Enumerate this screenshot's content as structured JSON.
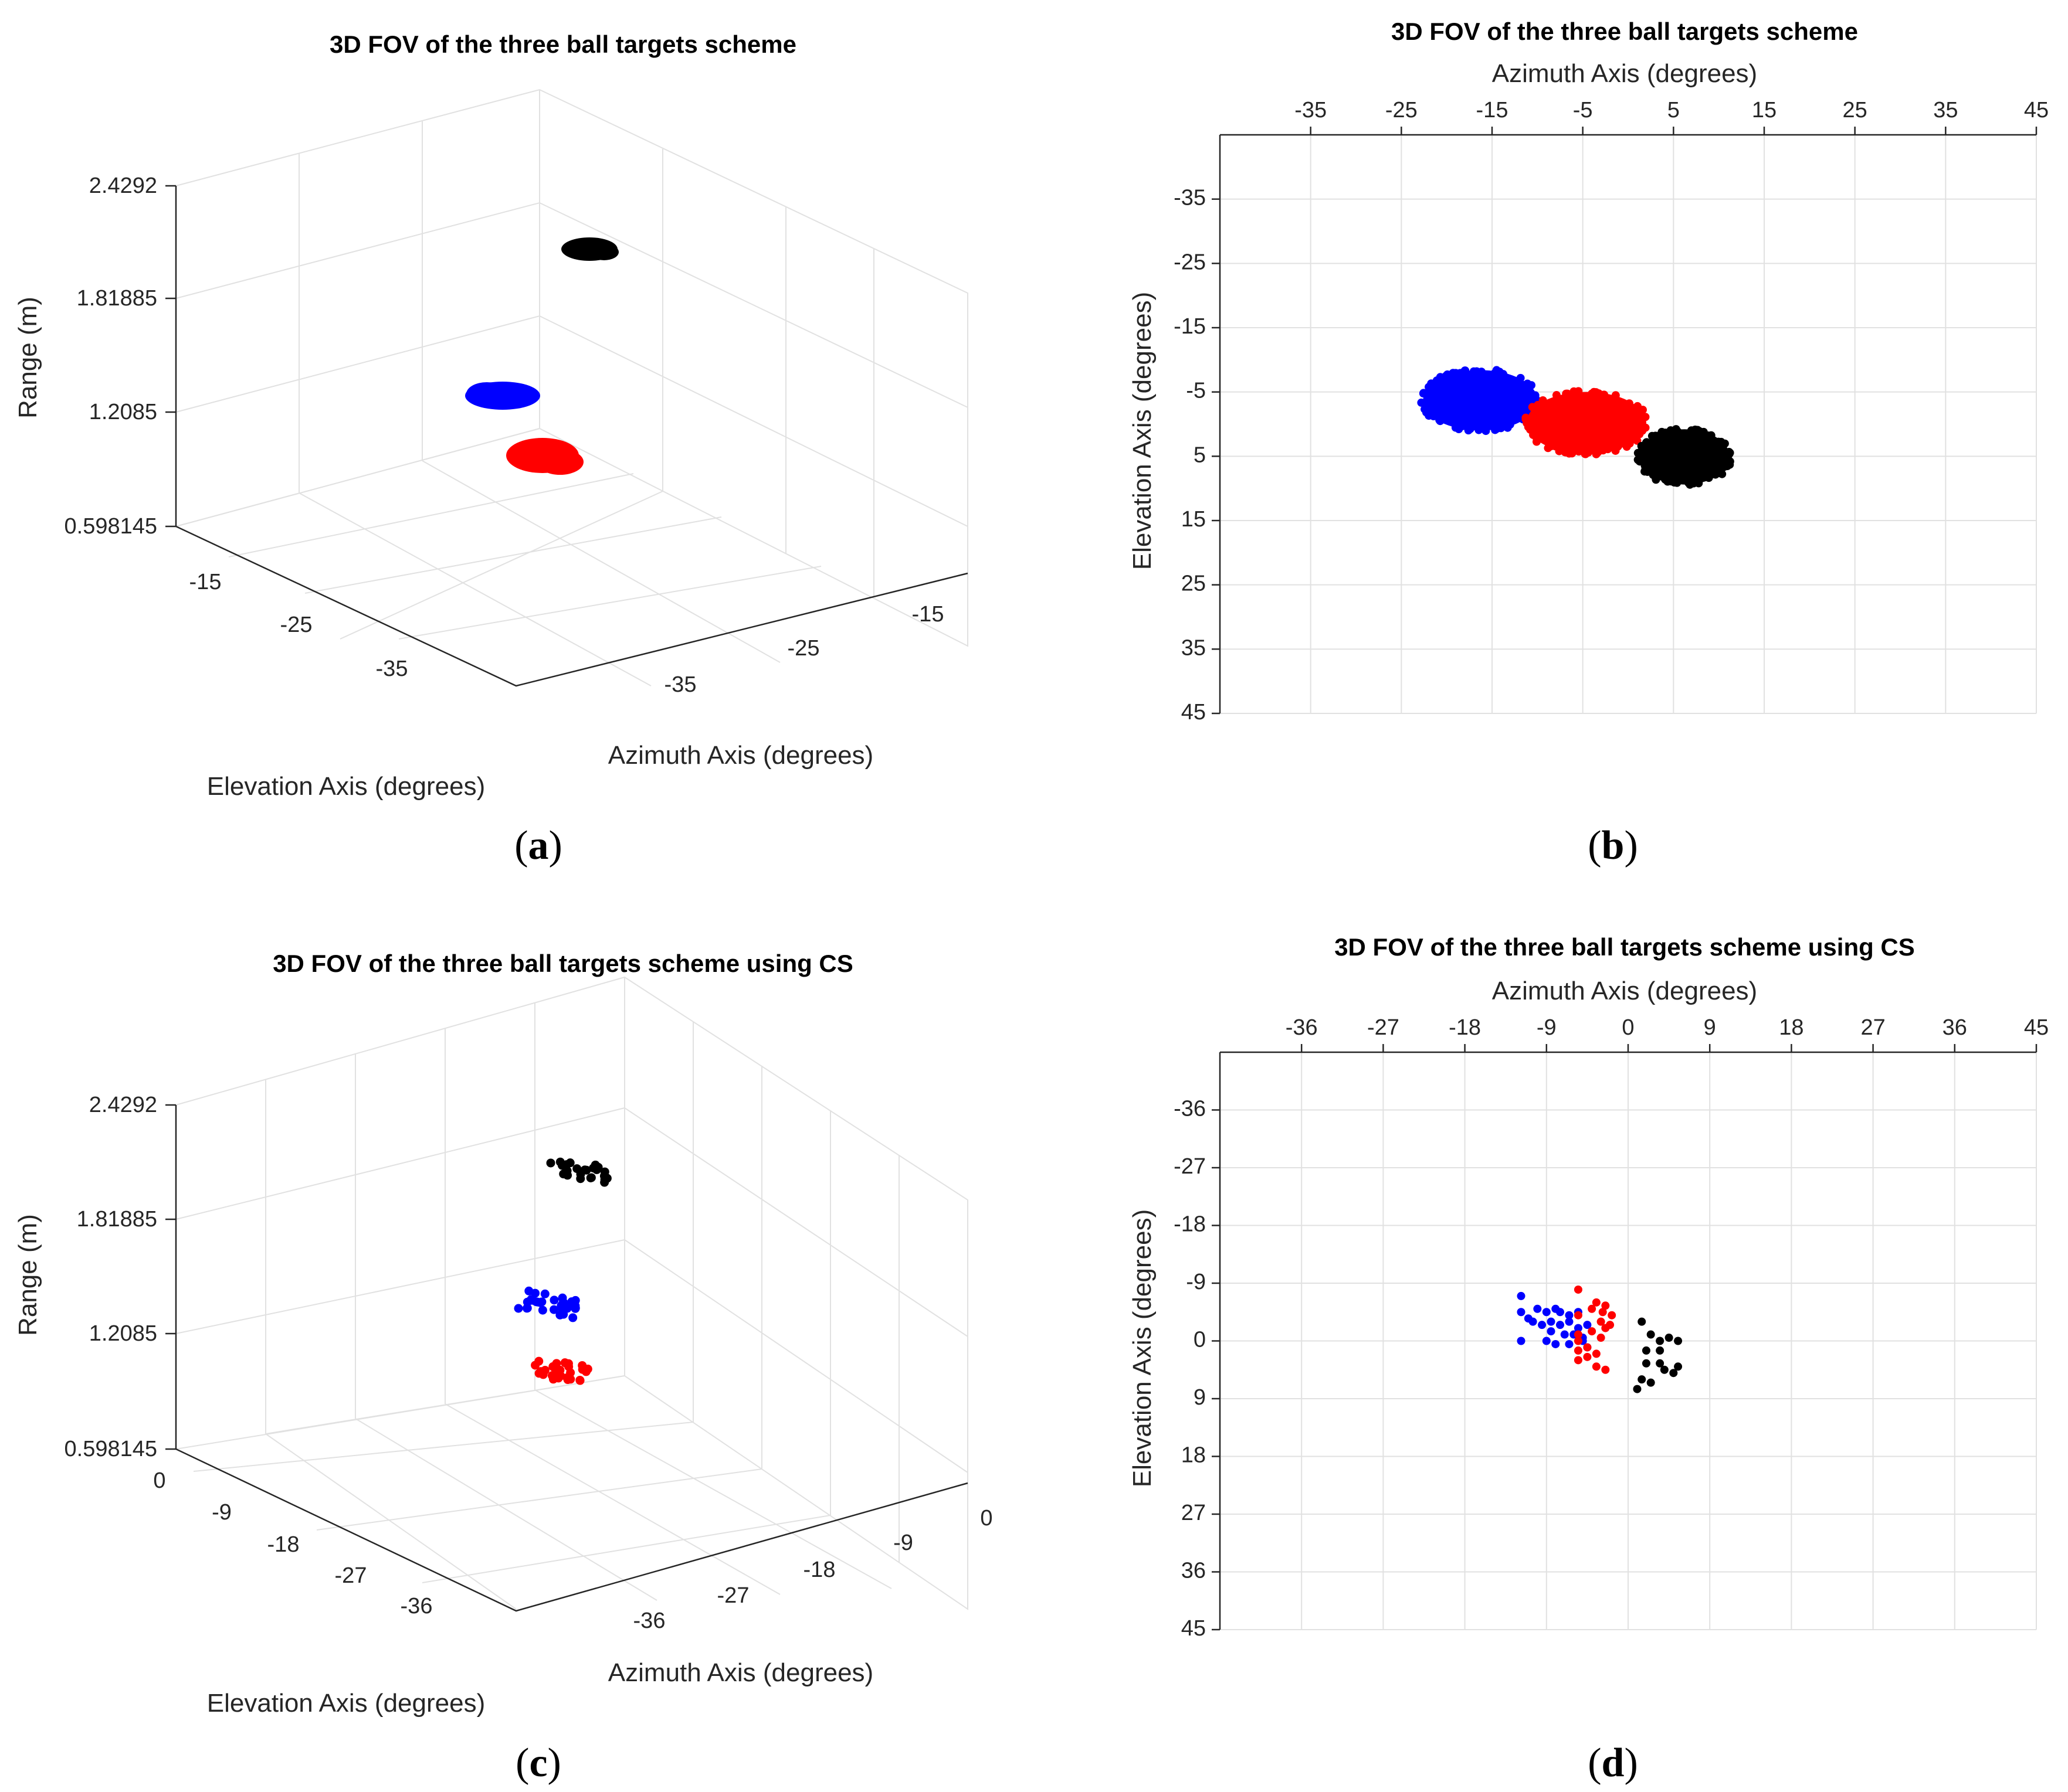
{
  "colors": {
    "blue": "#0000ff",
    "red": "#ff0000",
    "black": "#000000",
    "grid": "#e1e1e1",
    "axis": "#262626"
  },
  "chart_data": [
    {
      "id": "a",
      "type": "scatter",
      "projection": "3d",
      "title": "3D FOV of the three ball targets scheme",
      "caption_letter": "a",
      "xlabel": "Azimuth Axis (degrees)",
      "ylabel": "Elevation Axis (degrees)",
      "zlabel": "Range (m)",
      "z_ticks": [
        "0.598145",
        "1.2085",
        "1.81885",
        "2.4292"
      ],
      "zlim": [
        0.598145,
        2.4292
      ],
      "elevation_ticks": [
        "-15",
        "-25",
        "-35"
      ],
      "azimuth_ticks": [
        "-35",
        "-25",
        "-15"
      ],
      "series": [
        {
          "name": "blue target",
          "color": "blue",
          "center": {
            "azimuth": -18,
            "elevation": -2,
            "range": 1.33
          }
        },
        {
          "name": "red target",
          "color": "red",
          "center": {
            "azimuth": -4,
            "elevation": 1,
            "range": 0.99
          }
        },
        {
          "name": "black target",
          "color": "black",
          "center": {
            "azimuth": 6,
            "elevation": 5,
            "range": 2.05
          }
        }
      ]
    },
    {
      "id": "b",
      "type": "scatter",
      "title": "3D FOV of the three ball targets scheme",
      "caption_letter": "b",
      "xlabel": "Azimuth Axis (degrees)",
      "ylabel": "Elevation Axis (degrees)",
      "x_ticks": [
        -35,
        -25,
        -15,
        -5,
        5,
        15,
        25,
        35,
        45
      ],
      "y_ticks": [
        -35,
        -25,
        -15,
        -5,
        5,
        15,
        25,
        35,
        45
      ],
      "xlim": [
        -45,
        45
      ],
      "ylim": [
        -45,
        45
      ],
      "y_reversed": true,
      "series": [
        {
          "name": "blue target",
          "color": "blue",
          "center": {
            "azimuth": -16.3,
            "elevation": -3.7
          },
          "radius": [
            6.3,
            4.7
          ]
        },
        {
          "name": "red target",
          "color": "red",
          "center": {
            "azimuth": -4.6,
            "elevation": -0.2
          },
          "radius": [
            6.6,
            4.8
          ]
        },
        {
          "name": "black target",
          "color": "black",
          "center": {
            "azimuth": 6.2,
            "elevation": 5.1
          },
          "radius": [
            5.0,
            4.3
          ]
        }
      ]
    },
    {
      "id": "c",
      "type": "scatter",
      "projection": "3d",
      "title": "3D FOV of the three ball targets scheme using CS",
      "caption_letter": "c",
      "xlabel": "Azimuth Axis (degrees)",
      "ylabel": "Elevation Axis (degrees)",
      "zlabel": "Range (m)",
      "z_ticks": [
        "0.598145",
        "1.2085",
        "1.81885",
        "2.4292"
      ],
      "zlim": [
        0.598145,
        2.4292
      ],
      "elevation_ticks": [
        "0",
        "-9",
        "-18",
        "-27",
        "-36"
      ],
      "azimuth_ticks": [
        "-36",
        "-27",
        "-18",
        "-9",
        "0"
      ],
      "series": [
        {
          "name": "blue target",
          "color": "blue",
          "center": {
            "azimuth": -9,
            "elevation": -3,
            "range": 1.35
          }
        },
        {
          "name": "red target",
          "color": "red",
          "center": {
            "azimuth": -4,
            "elevation": -1,
            "range": 0.99
          }
        },
        {
          "name": "black target",
          "color": "black",
          "center": {
            "azimuth": 3,
            "elevation": 4,
            "range": 2.07
          }
        }
      ]
    },
    {
      "id": "d",
      "type": "scatter",
      "title": "3D FOV of the three ball targets scheme using CS",
      "caption_letter": "d",
      "xlabel": "Azimuth Axis (degrees)",
      "ylabel": "Elevation Axis (degrees)",
      "x_ticks": [
        -36,
        -27,
        -18,
        -9,
        0,
        9,
        18,
        27,
        36,
        45
      ],
      "y_ticks": [
        -36,
        -27,
        -18,
        -9,
        0,
        9,
        18,
        27,
        36,
        45
      ],
      "xlim": [
        -45,
        45
      ],
      "ylim": [
        -45,
        45
      ],
      "y_reversed": true,
      "series": [
        {
          "name": "blue target",
          "color": "blue",
          "x": [
            -11.8,
            -11.8,
            -11.8,
            -11.0,
            -10.0,
            -9.0,
            -8.0,
            -7.5,
            -6.5,
            -5.5,
            -10.5,
            -9.5,
            -8.5,
            -7.5,
            -6.5,
            -5.5,
            -4.5,
            -8.5,
            -7.0,
            -6.0,
            -5.0,
            -9.0,
            -8.0,
            -6.5,
            -5.0,
            -4.5
          ],
          "y": [
            -7.0,
            -4.5,
            0.0,
            -3.5,
            -5.0,
            -4.5,
            -5.0,
            -4.5,
            -4.0,
            -4.5,
            -3.0,
            -2.5,
            -3.0,
            -2.5,
            -3.0,
            -2.0,
            -2.5,
            -1.5,
            -1.0,
            -1.0,
            -0.5,
            0.0,
            0.5,
            0.5,
            0.0,
            1.0
          ]
        },
        {
          "name": "red target",
          "color": "red",
          "x": [
            -5.5,
            -3.5,
            -2.5,
            -4.0,
            -2.8,
            -1.8,
            -3.0,
            -2.0,
            -4.0,
            -2.5,
            -3.0,
            -5.5,
            -5.5,
            -5.5,
            -4.5,
            -5.5,
            -4.5,
            -3.5,
            -5.5,
            -3.5,
            -2.5
          ],
          "y": [
            -8.0,
            -6.0,
            -5.5,
            -5.0,
            -4.5,
            -4.0,
            -3.0,
            -2.5,
            -1.5,
            -2.0,
            -0.5,
            -4.0,
            -1.0,
            0.0,
            1.0,
            1.5,
            2.5,
            2.0,
            3.0,
            4.0,
            4.5
          ]
        },
        {
          "name": "black target",
          "color": "black",
          "x": [
            1.5,
            2.5,
            3.5,
            4.5,
            5.5,
            2.0,
            3.5,
            2.0,
            3.5,
            4.0,
            5.5,
            5.0,
            1.5,
            2.5,
            1.0
          ],
          "y": [
            -3.0,
            -1.0,
            0.0,
            -0.5,
            0.0,
            1.5,
            1.5,
            3.5,
            3.5,
            4.5,
            4.0,
            5.0,
            6.0,
            6.5,
            7.5
          ]
        }
      ]
    }
  ]
}
